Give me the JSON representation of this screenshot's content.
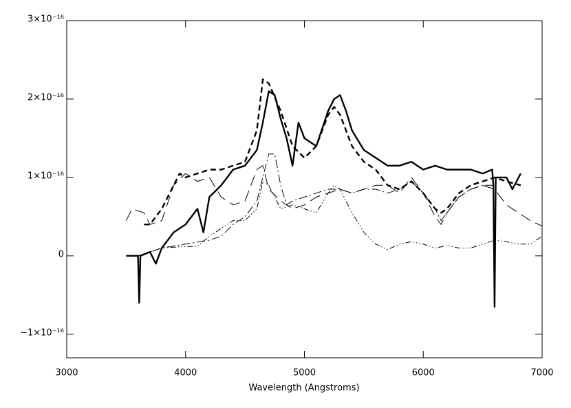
{
  "chart_data": {
    "type": "line",
    "xlabel": "Wavelength (Angstroms)",
    "xlim": [
      3000,
      7000
    ],
    "xticks": [
      3000,
      4000,
      5000,
      6000,
      7000
    ],
    "ylim": [
      -1.3e-16,
      3e-16
    ],
    "yticks": [
      {
        "value": -1e-16,
        "label": "−1×10⁻¹⁶"
      },
      {
        "value": 0,
        "label": "0"
      },
      {
        "value": 1e-16,
        "label": "1×10⁻¹⁶"
      },
      {
        "value": 2e-16,
        "label": "2×10⁻¹⁶"
      },
      {
        "value": 3e-16,
        "label": "3×10⁻¹⁶"
      }
    ],
    "grid": false,
    "series": [
      {
        "color": "#000000",
        "line_style": "solid",
        "line_width": 2.4,
        "x": [
          3500,
          3600,
          3610,
          3620,
          3700,
          3750,
          3800,
          3900,
          4000,
          4100,
          4150,
          4200,
          4300,
          4400,
          4500,
          4600,
          4650,
          4700,
          4750,
          4800,
          4850,
          4900,
          4950,
          5000,
          5100,
          5200,
          5250,
          5300,
          5350,
          5400,
          5500,
          5600,
          5700,
          5800,
          5900,
          6000,
          6100,
          6200,
          6300,
          6400,
          6500,
          6580,
          6590,
          6600,
          6610,
          6700,
          6750,
          6820
        ],
        "values": [
          0,
          0,
          -6e-17,
          0,
          5e-18,
          -1e-17,
          1e-17,
          3e-17,
          4e-17,
          6e-17,
          3e-17,
          7.5e-17,
          9e-17,
          1.1e-16,
          1.15e-16,
          1.35e-16,
          1.7e-16,
          2.1e-16,
          2.05e-16,
          1.75e-16,
          1.5e-16,
          1.15e-16,
          1.7e-16,
          1.5e-16,
          1.4e-16,
          1.85e-16,
          2e-16,
          2.05e-16,
          1.85e-16,
          1.6e-16,
          1.35e-16,
          1.25e-16,
          1.15e-16,
          1.15e-16,
          1.2e-16,
          1.1e-16,
          1.15e-16,
          1.1e-16,
          1.1e-16,
          1.1e-16,
          1.05e-16,
          1.1e-16,
          9e-17,
          -6.5e-17,
          1e-16,
          1e-16,
          8.5e-17,
          1.05e-16
        ]
      },
      {
        "color": "#000000",
        "line_style": "dashed",
        "line_width": 2.4,
        "x": [
          3650,
          3700,
          3800,
          3900,
          3950,
          4000,
          4100,
          4200,
          4300,
          4400,
          4500,
          4600,
          4650,
          4700,
          4800,
          4900,
          5000,
          5100,
          5200,
          5250,
          5300,
          5400,
          5500,
          5600,
          5700,
          5800,
          5900,
          6000,
          6100,
          6150,
          6200,
          6300,
          6400,
          6500,
          6600,
          6700,
          6820
        ],
        "values": [
          4e-17,
          4e-17,
          6e-17,
          9e-17,
          1.05e-16,
          1e-16,
          1.05e-16,
          1.1e-16,
          1.1e-16,
          1.15e-16,
          1.2e-16,
          1.6e-16,
          2.25e-16,
          2.2e-16,
          1.85e-16,
          1.4e-16,
          1.25e-16,
          1.4e-16,
          1.8e-16,
          1.9e-16,
          1.8e-16,
          1.4e-16,
          1.2e-16,
          1.1e-16,
          9e-17,
          8.5e-17,
          9.5e-17,
          8e-17,
          6e-17,
          5.5e-17,
          6e-17,
          8e-17,
          9e-17,
          9.5e-17,
          1e-16,
          9.5e-17,
          9e-17
        ]
      },
      {
        "color": "#000000",
        "line_style": "long-dash",
        "line_width": 1,
        "x": [
          3500,
          3550,
          3650,
          3700,
          3800,
          3900,
          4000,
          4100,
          4200,
          4300,
          4400,
          4500,
          4600,
          4650,
          4700,
          4800,
          4900,
          5000,
          5100,
          5200,
          5300,
          5400,
          5500,
          5600,
          5700,
          5800,
          5900,
          6000,
          6100,
          6150,
          6200,
          6300,
          6400,
          6500,
          6600,
          6700,
          6800,
          6900,
          7000
        ],
        "values": [
          4.5e-17,
          6e-17,
          5.5e-17,
          4e-17,
          4.5e-17,
          9e-17,
          1.05e-16,
          9.5e-17,
          1e-16,
          7.5e-17,
          6.5e-17,
          7e-17,
          1.1e-16,
          1.15e-16,
          8.5e-17,
          7e-17,
          6e-17,
          6.5e-17,
          7.5e-17,
          8e-17,
          8.5e-17,
          8e-17,
          8.5e-17,
          9e-17,
          9e-17,
          8e-17,
          1e-16,
          8e-17,
          5e-17,
          4e-17,
          5.5e-17,
          7.5e-17,
          8.5e-17,
          9e-17,
          8.5e-17,
          6.5e-17,
          5.5e-17,
          4.5e-17,
          3.8e-17
        ]
      },
      {
        "color": "#000000",
        "line_style": "dash-dot",
        "line_width": 1,
        "x": [
          3600,
          3800,
          4000,
          4200,
          4300,
          4400,
          4500,
          4600,
          4700,
          4750,
          4800,
          4850,
          4900,
          5000,
          5100,
          5200,
          5300,
          5400,
          5500,
          5600,
          5700,
          5800,
          5900,
          6000,
          6100,
          6150,
          6200,
          6300,
          6400,
          6500,
          6600
        ],
        "values": [
          0,
          1e-17,
          1.5e-17,
          2e-17,
          2.5e-17,
          4e-17,
          5e-17,
          7e-17,
          1.3e-16,
          1.3e-16,
          9e-17,
          6.5e-17,
          7e-17,
          7.5e-17,
          8e-17,
          8.5e-17,
          8.5e-17,
          8e-17,
          8.5e-17,
          8.5e-17,
          8e-17,
          8.5e-17,
          9.5e-17,
          8e-17,
          6e-17,
          4.5e-17,
          5.5e-17,
          7.5e-17,
          8.5e-17,
          9e-17,
          9e-17
        ]
      },
      {
        "color": "#000000",
        "line_style": "dash-dot-dot-dot",
        "line_width": 1,
        "x": [
          3600,
          3800,
          4000,
          4100,
          4200,
          4300,
          4400,
          4500,
          4600,
          4650,
          4700,
          4800,
          4900,
          5000,
          5100,
          5200,
          5250,
          5300,
          5400,
          5500,
          5600,
          5700,
          5800,
          5900,
          6000,
          6100,
          6200,
          6300,
          6400,
          6500,
          6600,
          6700,
          6800,
          6900,
          7000
        ],
        "values": [
          0,
          1e-17,
          1.2e-17,
          1.2e-17,
          2.5e-17,
          3.5e-17,
          4.5e-17,
          4.5e-17,
          6e-17,
          9.5e-17,
          9e-17,
          6e-17,
          6.5e-17,
          6e-17,
          5.5e-17,
          8e-17,
          9e-17,
          8.5e-17,
          5.5e-17,
          3e-17,
          1.5e-17,
          8e-18,
          1.5e-17,
          1.8e-17,
          1.5e-17,
          1e-17,
          1.3e-17,
          1e-17,
          1e-17,
          1.5e-17,
          2e-17,
          1.8e-17,
          1.5e-17,
          1.5e-17,
          2.5e-17
        ]
      }
    ]
  }
}
